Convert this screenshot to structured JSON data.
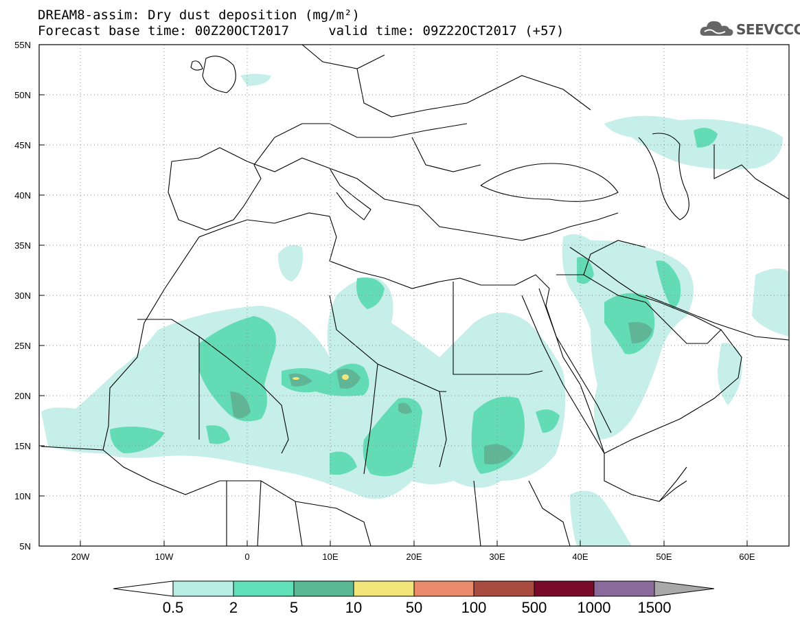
{
  "header": {
    "title_line1": "DREAM8-assim: Dry dust deposition (mg/m²)",
    "title_line2": "Forecast base time: 00Z20OCT2017     valid time: 09Z22OCT2017 (+57)"
  },
  "logo": {
    "text": "SEEVCCC",
    "icon": "cloud-icon"
  },
  "map": {
    "lat_labels": [
      "55N",
      "50N",
      "45N",
      "40N",
      "35N",
      "30N",
      "25N",
      "20N",
      "15N",
      "10N",
      "5N"
    ],
    "lon_labels": [
      "20W",
      "10W",
      "0",
      "10E",
      "20E",
      "30E",
      "40E",
      "50E",
      "60E"
    ],
    "lat_range": [
      5,
      55
    ],
    "lon_range": [
      -25,
      65
    ]
  },
  "legend": {
    "levels": [
      "0.5",
      "2",
      "5",
      "10",
      "50",
      "100",
      "500",
      "1000",
      "1500"
    ],
    "colors": [
      "#b9eee5",
      "#5fe0b8",
      "#5ab894",
      "#f2e57a",
      "#e98b6a",
      "#a84c40",
      "#7a0a2a",
      "#8a6a9a",
      "#a9a9a9"
    ]
  },
  "dust_colors": {
    "light": "#c5efe8",
    "mid": "#63dbb5",
    "dark": "#5fb596",
    "peak": "#f2e57a"
  }
}
